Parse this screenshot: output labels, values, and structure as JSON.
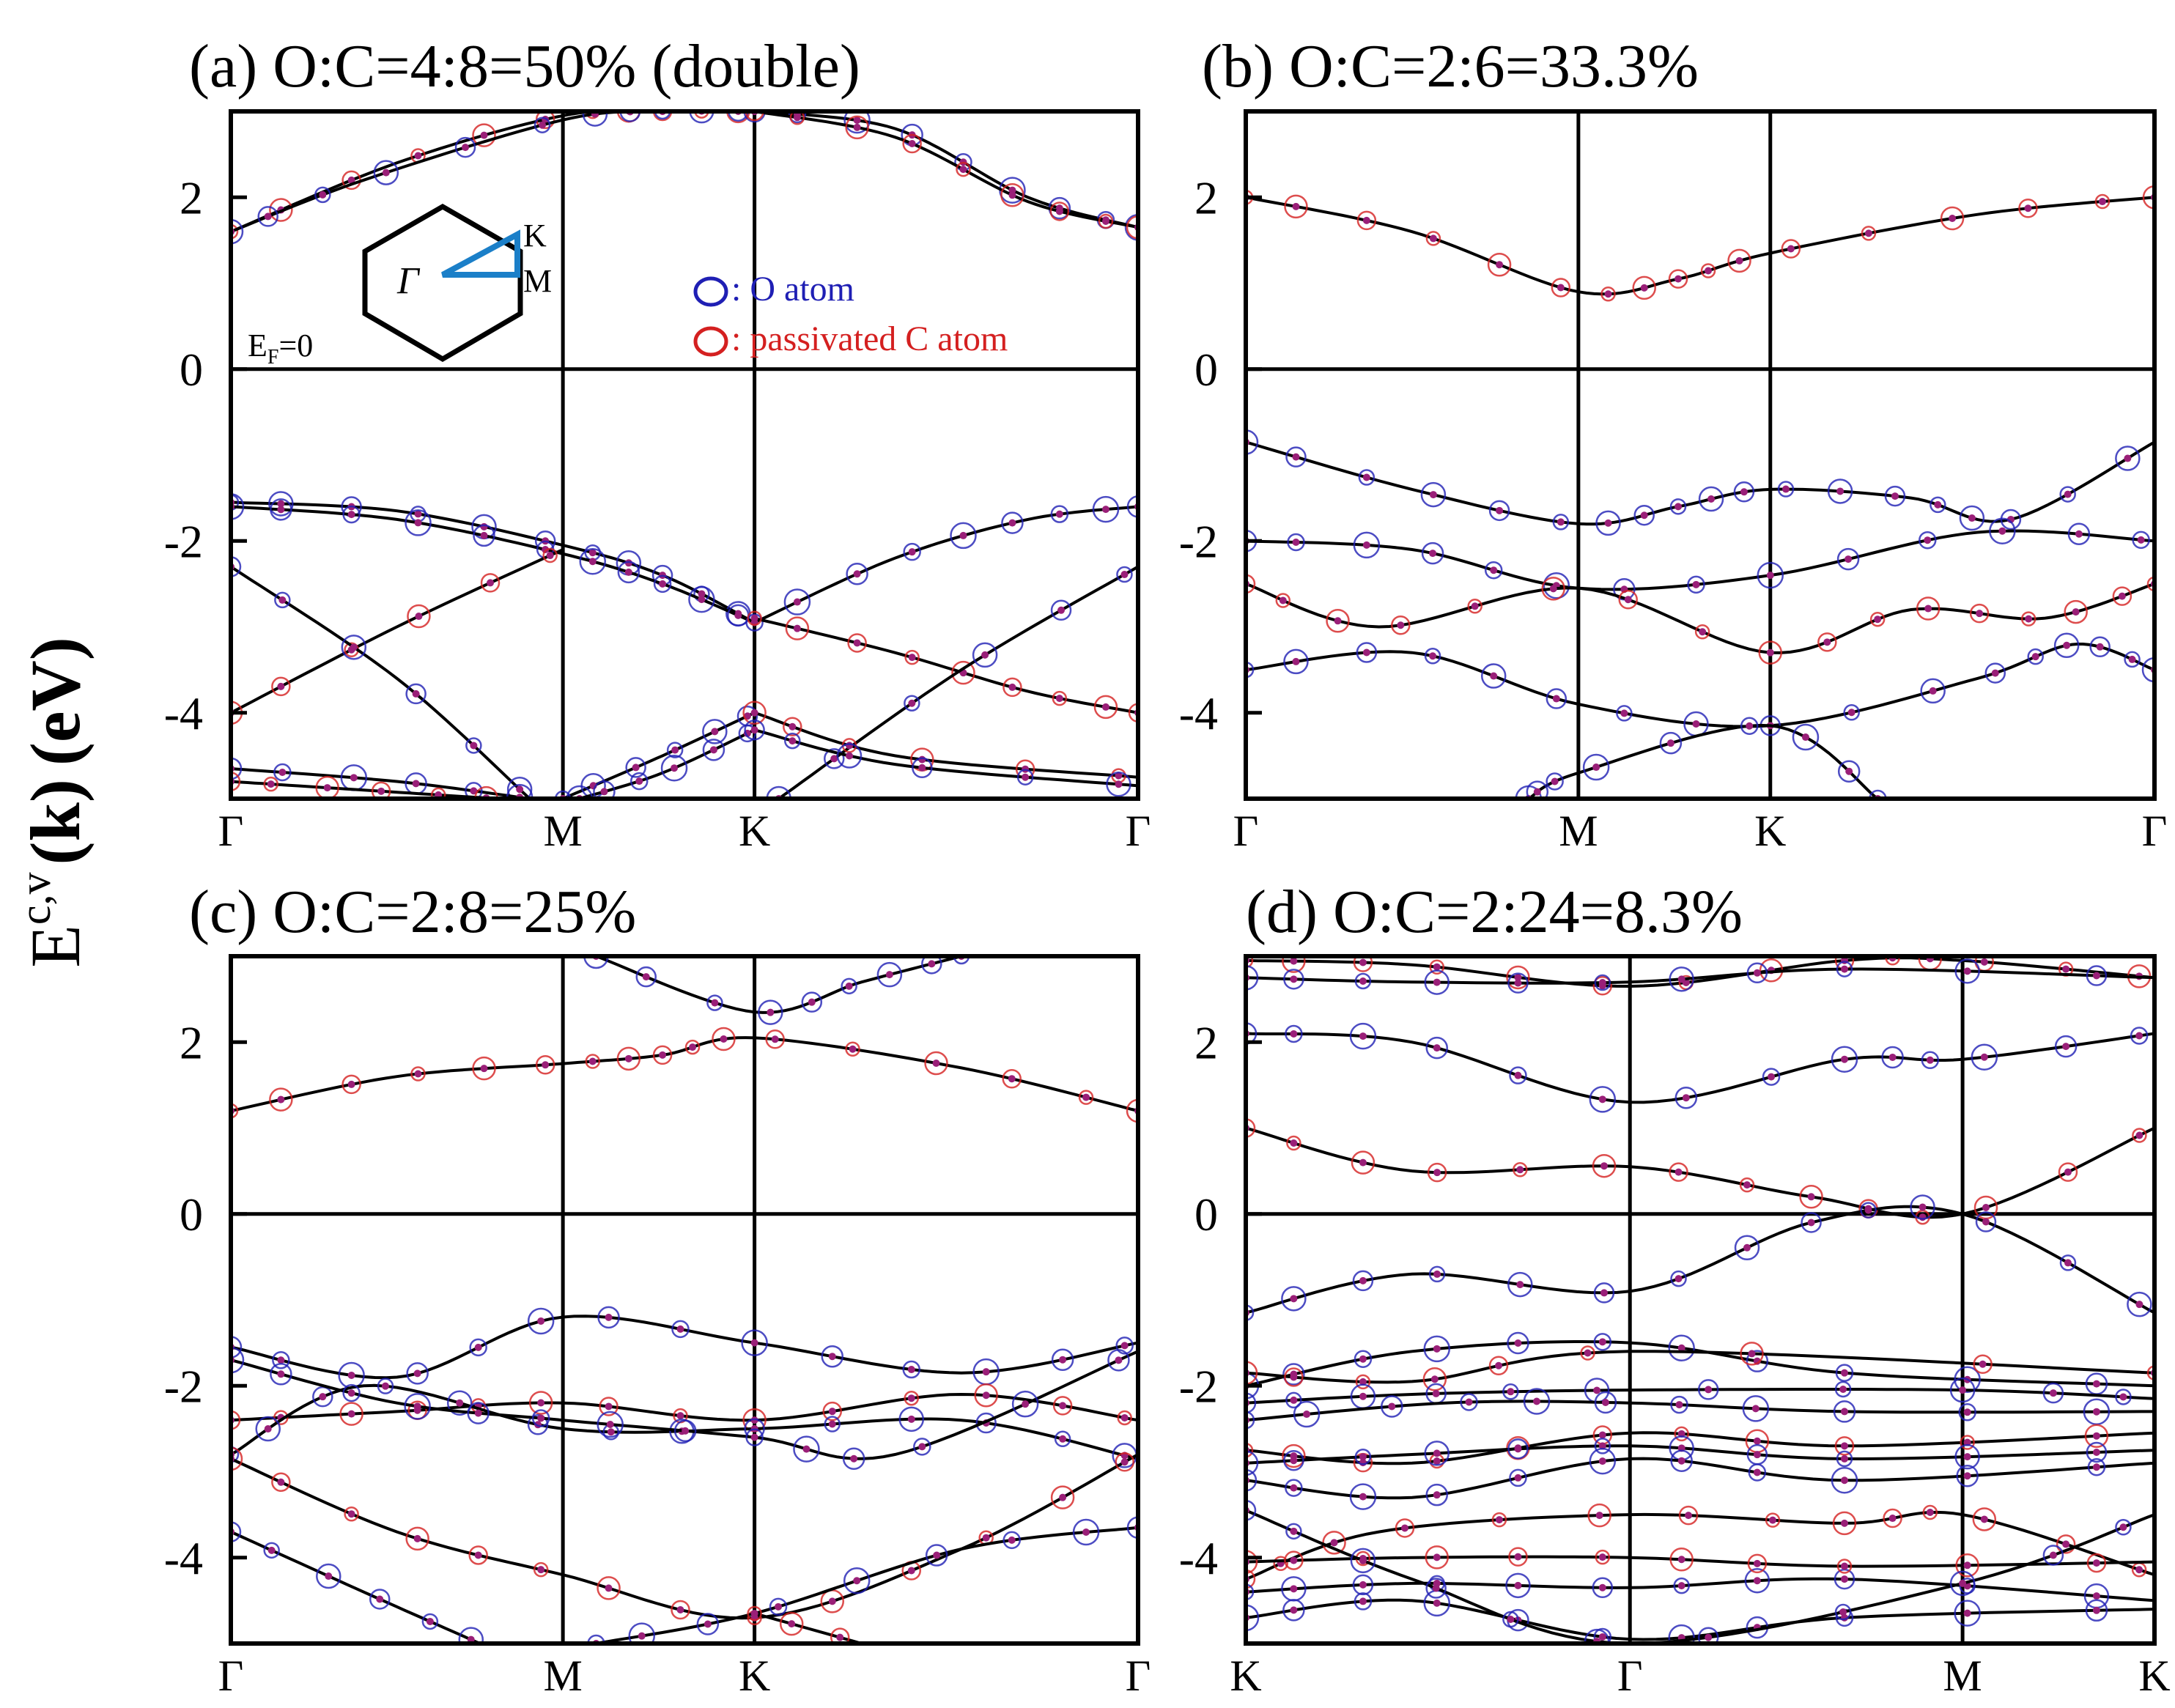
{
  "figure": {
    "ylabel_main": "E",
    "ylabel_sup": "c,v",
    "ylabel_k": "(k)",
    "ylabel_unit": "(eV)"
  },
  "legend": {
    "o_atom": ": O atom",
    "c_atom": ": passivated C atom",
    "o_color": "#1f1fb4",
    "c_color": "#d42020"
  },
  "inset": {
    "gamma": "Γ",
    "k": "K",
    "m": "M",
    "fermi": "E",
    "fermi_sub": "F",
    "fermi_val": "=0",
    "path_color": "#1b7fc8"
  },
  "chart_data": [
    {
      "type": "line",
      "panel": "a",
      "title": "(a) O:C=4:8=50% (double)",
      "ylim": [
        -5,
        3
      ],
      "yticks": [
        "2",
        "0",
        "-2",
        "-4"
      ],
      "ytick_values": [
        2,
        0,
        -2,
        -4
      ],
      "kpath": [
        "Γ",
        "M",
        "K",
        "Γ"
      ],
      "kpath_pos": [
        0,
        1,
        1.577,
        2.732
      ],
      "bands": [
        [
          [
            0,
            1.6
          ],
          [
            0.5,
            2.4
          ],
          [
            1,
            2.95
          ],
          [
            1.3,
            3
          ],
          [
            1.577,
            3
          ]
        ],
        [
          [
            0,
            1.6
          ],
          [
            0.4,
            2.2
          ],
          [
            1,
            2.9
          ],
          [
            1.3,
            3
          ],
          [
            1.577,
            3
          ]
        ],
        [
          [
            1.577,
            3
          ],
          [
            2.0,
            2.8
          ],
          [
            2.4,
            2.0
          ],
          [
            2.732,
            1.65
          ]
        ],
        [
          [
            1.577,
            3
          ],
          [
            2.0,
            2.7
          ],
          [
            2.4,
            1.95
          ],
          [
            2.732,
            1.65
          ]
        ],
        [
          [
            0,
            -1.55
          ],
          [
            0.5,
            -1.65
          ],
          [
            1,
            -2.05
          ],
          [
            1.3,
            -2.4
          ],
          [
            1.577,
            -2.95
          ]
        ],
        [
          [
            0,
            -1.6
          ],
          [
            0.5,
            -1.75
          ],
          [
            1,
            -2.15
          ],
          [
            1.3,
            -2.5
          ],
          [
            1.577,
            -2.95
          ]
        ],
        [
          [
            0,
            -4.0
          ],
          [
            0.5,
            -3.0
          ],
          [
            1,
            -2.1
          ]
        ],
        [
          [
            0,
            -2.3
          ],
          [
            0.5,
            -3.6
          ],
          [
            0.9,
            -5
          ]
        ],
        [
          [
            1.577,
            -2.95
          ],
          [
            2.0,
            -2.2
          ],
          [
            2.4,
            -1.75
          ],
          [
            2.732,
            -1.6
          ]
        ],
        [
          [
            1.577,
            -2.9
          ],
          [
            2.0,
            -3.3
          ],
          [
            2.4,
            -3.75
          ],
          [
            2.732,
            -4.0
          ]
        ],
        [
          [
            1.65,
            -5
          ],
          [
            2.2,
            -3.5
          ],
          [
            2.732,
            -2.3
          ]
        ],
        [
          [
            0,
            -4.65
          ],
          [
            0.5,
            -4.8
          ],
          [
            0.9,
            -5
          ]
        ],
        [
          [
            0,
            -4.8
          ],
          [
            0.4,
            -4.9
          ],
          [
            0.8,
            -5
          ]
        ],
        [
          [
            1.0,
            -5
          ],
          [
            1.3,
            -4.5
          ],
          [
            1.577,
            -4.0
          ]
        ],
        [
          [
            1.05,
            -5
          ],
          [
            1.3,
            -4.7
          ],
          [
            1.577,
            -4.2
          ]
        ],
        [
          [
            1.577,
            -4.0
          ],
          [
            2.0,
            -4.5
          ],
          [
            2.732,
            -4.75
          ]
        ],
        [
          [
            1.577,
            -4.2
          ],
          [
            2.0,
            -4.6
          ],
          [
            2.732,
            -4.85
          ]
        ]
      ]
    },
    {
      "type": "line",
      "panel": "b",
      "title": "(b) O:C=2:6=33.3%",
      "ylim": [
        -5,
        3
      ],
      "yticks": [
        "2",
        "0",
        "-2",
        "-4"
      ],
      "ytick_values": [
        2,
        0,
        -2,
        -4
      ],
      "kpath": [
        "Γ",
        "M",
        "K",
        "Γ"
      ],
      "kpath_pos": [
        0,
        1,
        1.577,
        2.732
      ],
      "bands": [
        [
          [
            0,
            2.0
          ],
          [
            0.5,
            1.6
          ],
          [
            1,
            0.9
          ],
          [
            1.3,
            1.05
          ],
          [
            1.577,
            1.35
          ],
          [
            2.2,
            1.8
          ],
          [
            2.732,
            2.0
          ]
        ],
        [
          [
            0,
            -0.85
          ],
          [
            0.5,
            -1.4
          ],
          [
            1,
            -1.8
          ],
          [
            1.3,
            -1.6
          ],
          [
            1.577,
            -1.4
          ],
          [
            2.0,
            -1.5
          ],
          [
            2.3,
            -1.75
          ],
          [
            2.732,
            -0.85
          ]
        ],
        [
          [
            0,
            -2.0
          ],
          [
            0.5,
            -2.1
          ],
          [
            1,
            -2.55
          ],
          [
            1.577,
            -2.4
          ],
          [
            2.2,
            -1.9
          ],
          [
            2.732,
            -2.0
          ]
        ],
        [
          [
            0,
            -2.5
          ],
          [
            0.4,
            -3.0
          ],
          [
            1,
            -2.55
          ],
          [
            1.577,
            -3.3
          ],
          [
            2.0,
            -2.8
          ],
          [
            2.4,
            -2.9
          ],
          [
            2.732,
            -2.5
          ]
        ],
        [
          [
            0,
            -3.5
          ],
          [
            0.5,
            -3.3
          ],
          [
            1,
            -3.9
          ],
          [
            1.577,
            -4.15
          ],
          [
            2.2,
            -3.6
          ],
          [
            2.5,
            -3.2
          ],
          [
            2.732,
            -3.5
          ]
        ],
        [
          [
            0.85,
            -5
          ],
          [
            1,
            -4.7
          ],
          [
            1.577,
            -4.15
          ],
          [
            1.9,
            -5
          ]
        ]
      ]
    },
    {
      "type": "line",
      "panel": "c",
      "title": "(c) O:C=2:8=25%",
      "ylim": [
        -5,
        3
      ],
      "yticks": [
        "2",
        "0",
        "-2",
        "-4"
      ],
      "ytick_values": [
        2,
        0,
        -2,
        -4
      ],
      "kpath": [
        "Γ",
        "M",
        "K",
        "Γ"
      ],
      "kpath_pos": [
        0,
        1,
        1.577,
        2.732
      ],
      "bands": [
        [
          [
            0,
            1.2
          ],
          [
            0.5,
            1.6
          ],
          [
            1,
            1.75
          ],
          [
            1.3,
            1.85
          ],
          [
            1.577,
            2.05
          ],
          [
            2.2,
            1.7
          ],
          [
            2.732,
            1.2
          ]
        ],
        [
          [
            1.1,
            3.0
          ],
          [
            1.577,
            2.35
          ],
          [
            1.9,
            2.7
          ],
          [
            2.2,
            3.0
          ]
        ],
        [
          [
            0,
            -1.55
          ],
          [
            0.5,
            -1.9
          ],
          [
            1,
            -1.2
          ],
          [
            1.577,
            -1.5
          ],
          [
            2.2,
            -1.85
          ],
          [
            2.732,
            -1.5
          ]
        ],
        [
          [
            0,
            -2.4
          ],
          [
            0.5,
            -2.3
          ],
          [
            1,
            -2.2
          ],
          [
            1.577,
            -2.4
          ],
          [
            2.2,
            -2.1
          ],
          [
            2.732,
            -2.4
          ]
        ],
        [
          [
            0,
            -2.8
          ],
          [
            0.4,
            -2.0
          ],
          [
            1,
            -2.5
          ],
          [
            1.577,
            -2.5
          ],
          [
            2.2,
            -2.4
          ],
          [
            2.732,
            -2.85
          ]
        ],
        [
          [
            0,
            -1.7
          ],
          [
            0.5,
            -2.2
          ],
          [
            1,
            -2.4
          ],
          [
            1.577,
            -2.6
          ],
          [
            2.0,
            -2.8
          ],
          [
            2.732,
            -1.6
          ]
        ],
        [
          [
            0,
            -2.85
          ],
          [
            0.5,
            -3.7
          ],
          [
            1,
            -4.2
          ],
          [
            1.577,
            -4.7
          ],
          [
            2.2,
            -3.9
          ],
          [
            2.732,
            -2.8
          ]
        ],
        [
          [
            0,
            -3.7
          ],
          [
            0.4,
            -4.4
          ],
          [
            0.75,
            -5
          ]
        ],
        [
          [
            1.1,
            -5
          ],
          [
            1.577,
            -4.65
          ],
          [
            2.2,
            -3.9
          ],
          [
            2.732,
            -3.65
          ]
        ],
        [
          [
            1.577,
            -4.65
          ],
          [
            1.9,
            -5
          ]
        ]
      ]
    },
    {
      "type": "line",
      "panel": "d",
      "title": "(d) O:C=2:24=8.3%",
      "ylim": [
        -5,
        3
      ],
      "yticks": [
        "2",
        "0",
        "-2",
        "-4"
      ],
      "ytick_values": [
        2,
        0,
        -2,
        -4
      ],
      "kpath": [
        "K",
        "Γ",
        "M",
        "K"
      ],
      "kpath_pos": [
        0,
        1.155,
        2.155,
        2.732
      ],
      "bands": [
        [
          [
            0,
            2.95
          ],
          [
            0.5,
            2.9
          ],
          [
            1.155,
            2.65
          ],
          [
            1.8,
            2.95
          ],
          [
            2.155,
            2.95
          ],
          [
            2.732,
            2.75
          ]
        ],
        [
          [
            0,
            2.75
          ],
          [
            0.5,
            2.7
          ],
          [
            1.155,
            2.7
          ],
          [
            1.8,
            2.85
          ],
          [
            2.732,
            2.75
          ]
        ],
        [
          [
            0,
            2.1
          ],
          [
            0.5,
            2.0
          ],
          [
            1.155,
            1.3
          ],
          [
            1.8,
            1.8
          ],
          [
            2.155,
            1.8
          ],
          [
            2.732,
            2.1
          ]
        ],
        [
          [
            0,
            1.0
          ],
          [
            0.5,
            0.5
          ],
          [
            1.155,
            0.55
          ],
          [
            1.7,
            0.2
          ],
          [
            2.155,
            0
          ],
          [
            2.732,
            1.0
          ]
        ],
        [
          [
            0,
            -1.15
          ],
          [
            0.5,
            -0.7
          ],
          [
            1.155,
            -0.9
          ],
          [
            1.7,
            -0.1
          ],
          [
            2.155,
            0
          ],
          [
            2.732,
            -1.15
          ]
        ],
        [
          [
            0,
            -2.0
          ],
          [
            0.5,
            -1.6
          ],
          [
            1.155,
            -1.5
          ],
          [
            1.8,
            -1.85
          ],
          [
            2.732,
            -2.0
          ]
        ],
        [
          [
            0,
            -1.85
          ],
          [
            0.5,
            -1.95
          ],
          [
            1.155,
            -1.6
          ],
          [
            2.732,
            -1.85
          ]
        ],
        [
          [
            0,
            -2.2
          ],
          [
            0.5,
            -2.1
          ],
          [
            1.155,
            -2.05
          ],
          [
            2.155,
            -2.05
          ],
          [
            2.732,
            -2.15
          ]
        ],
        [
          [
            0,
            -2.4
          ],
          [
            0.6,
            -2.2
          ],
          [
            1.155,
            -2.2
          ],
          [
            1.8,
            -2.3
          ],
          [
            2.732,
            -2.3
          ]
        ],
        [
          [
            0,
            -2.75
          ],
          [
            0.5,
            -2.9
          ],
          [
            1.155,
            -2.55
          ],
          [
            1.8,
            -2.7
          ],
          [
            2.732,
            -2.55
          ]
        ],
        [
          [
            0,
            -2.9
          ],
          [
            0.5,
            -2.8
          ],
          [
            1.155,
            -2.7
          ],
          [
            1.8,
            -2.85
          ],
          [
            2.732,
            -2.75
          ]
        ],
        [
          [
            0,
            -3.1
          ],
          [
            0.5,
            -3.3
          ],
          [
            1.155,
            -2.85
          ],
          [
            1.8,
            -3.1
          ],
          [
            2.732,
            -2.9
          ]
        ],
        [
          [
            0,
            -4.25
          ],
          [
            0.4,
            -3.7
          ],
          [
            1.155,
            -3.5
          ],
          [
            1.8,
            -3.6
          ],
          [
            2.155,
            -3.5
          ],
          [
            2.732,
            -4.2
          ]
        ],
        [
          [
            0,
            -4.4
          ],
          [
            0.5,
            -4.3
          ],
          [
            1.155,
            -4.35
          ],
          [
            1.8,
            -4.25
          ],
          [
            2.732,
            -4.5
          ]
        ],
        [
          [
            0,
            -4.7
          ],
          [
            0.5,
            -4.5
          ],
          [
            1.155,
            -4.95
          ],
          [
            1.8,
            -4.7
          ],
          [
            2.732,
            -4.6
          ]
        ],
        [
          [
            0,
            -4.05
          ],
          [
            0.5,
            -4.0
          ],
          [
            1.155,
            -4.0
          ],
          [
            1.8,
            -4.1
          ],
          [
            2.732,
            -4.05
          ]
        ],
        [
          [
            0,
            -3.45
          ],
          [
            0.5,
            -4.25
          ],
          [
            1.155,
            -5
          ],
          [
            2.155,
            -4.3
          ],
          [
            2.732,
            -3.5
          ]
        ]
      ]
    }
  ]
}
